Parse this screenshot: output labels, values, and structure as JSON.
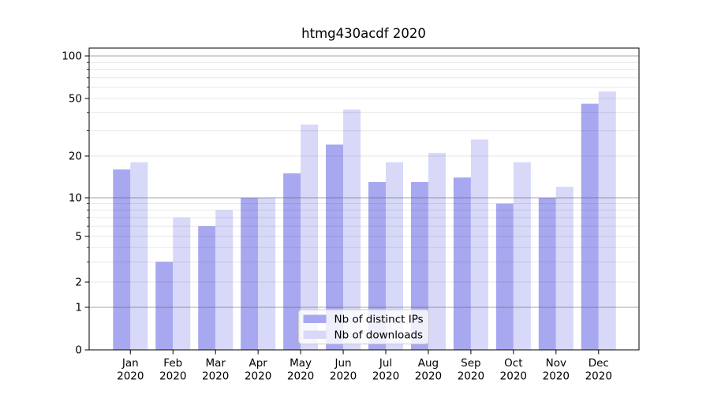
{
  "chart_data": {
    "type": "bar",
    "title": "htmg430acdf 2020",
    "categories": [
      "Jan",
      "Feb",
      "Mar",
      "Apr",
      "May",
      "Jun",
      "Jul",
      "Aug",
      "Sep",
      "Oct",
      "Nov",
      "Dec"
    ],
    "x_tick_year": "2020",
    "series": [
      {
        "name": "Nb of distinct IPs",
        "color": "#a8a8f0",
        "values": [
          16,
          3,
          6,
          10,
          15,
          24,
          13,
          13,
          14,
          9,
          10,
          46
        ]
      },
      {
        "name": "Nb of downloads",
        "color": "#d8d8f8",
        "values": [
          18,
          7,
          8,
          10,
          33,
          42,
          18,
          21,
          26,
          18,
          12,
          56
        ]
      }
    ],
    "xlabel": "",
    "ylabel": "",
    "yscale": "symlog",
    "ylim": [
      0,
      114
    ],
    "y_ticks": [
      0,
      1,
      2,
      5,
      10,
      20,
      50,
      100
    ],
    "y_tick_labels": [
      "0",
      "1",
      "2",
      "5",
      "10",
      "20",
      "50",
      "100"
    ],
    "y_major_gridlines": [
      1,
      10,
      100
    ],
    "y_minor_gridlines": [
      2,
      3,
      4,
      5,
      6,
      7,
      8,
      9,
      20,
      30,
      40,
      50,
      60,
      70,
      80,
      90
    ],
    "grid": true,
    "legend_position": "lower center",
    "colors": {
      "major_grid": "#b0b0b0",
      "minor_grid": "#e7e7e7",
      "axis": "#000000",
      "text": "#000000",
      "legend_border": "#cccccc",
      "background": "#ffffff"
    }
  }
}
